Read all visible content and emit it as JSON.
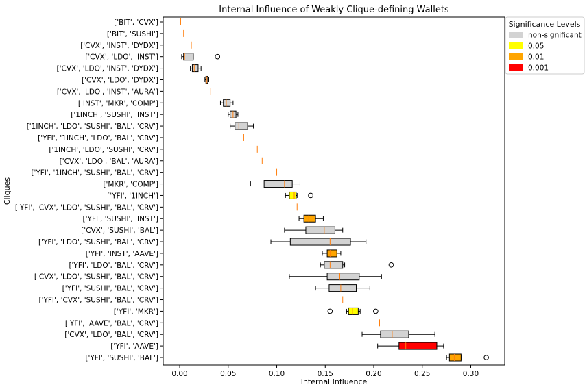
{
  "chart_data": {
    "type": "boxplot-horizontal",
    "title": "Internal Influence of Weakly Clique-defining Wallets",
    "xlabel": "Internal Influence",
    "ylabel": "Cliques",
    "xlim": [
      -0.017,
      0.335
    ],
    "xticks": [
      "0.00",
      "0.05",
      "0.10",
      "0.15",
      "0.20",
      "0.25",
      "0.30"
    ],
    "xtick_values": [
      0,
      0.05,
      0.1,
      0.15,
      0.2,
      0.25,
      0.3
    ],
    "grid": false,
    "legend": {
      "title": "Significance Levels",
      "placement": "outside-top-right",
      "entries": [
        {
          "label": "non-significant",
          "color": "#d3d3d3",
          "key": "ns"
        },
        {
          "label": "0.05",
          "color": "#ffff00",
          "key": "p05"
        },
        {
          "label": "0.01",
          "color": "#ffa500",
          "key": "p01"
        },
        {
          "label": "0.001",
          "color": "#ff0000",
          "key": "p001"
        }
      ]
    },
    "median_color": "#ff7f0e",
    "boxes": [
      {
        "label": "['BIT', 'CVX']",
        "min": 0.001,
        "q1": 0.001,
        "median": 0.001,
        "q3": 0.001,
        "max": 0.001,
        "outliers": [],
        "sig": "ns"
      },
      {
        "label": "['BIT', 'SUSHI']",
        "min": 0.004,
        "q1": 0.004,
        "median": 0.004,
        "q3": 0.004,
        "max": 0.004,
        "outliers": [],
        "sig": "ns"
      },
      {
        "label": "['CVX', 'INST', 'DYDX']",
        "min": 0.012,
        "q1": 0.012,
        "median": 0.012,
        "q3": 0.012,
        "max": 0.012,
        "outliers": [],
        "sig": "ns"
      },
      {
        "label": "['CVX', 'LDO', 'INST']",
        "min": 0.002,
        "q1": 0.004,
        "median": 0.005,
        "q3": 0.014,
        "max": 0.014,
        "outliers": [
          0.039
        ],
        "sig": "ns"
      },
      {
        "label": "['CVX', 'LDO', 'INST', 'DYDX']",
        "min": 0.011,
        "q1": 0.013,
        "median": 0.015,
        "q3": 0.019,
        "max": 0.022,
        "outliers": [],
        "sig": "ns"
      },
      {
        "label": "['CVX', 'LDO', 'DYDX']",
        "min": 0.026,
        "q1": 0.027,
        "median": 0.028,
        "q3": 0.029,
        "max": 0.03,
        "outliers": [],
        "sig": "ns"
      },
      {
        "label": "['CVX', 'LDO', 'INST', 'AURA']",
        "min": 0.032,
        "q1": 0.032,
        "median": 0.032,
        "q3": 0.032,
        "max": 0.032,
        "outliers": [],
        "sig": "ns"
      },
      {
        "label": "['INST', 'MKR', 'COMP']",
        "min": 0.042,
        "q1": 0.045,
        "median": 0.048,
        "q3": 0.052,
        "max": 0.055,
        "outliers": [],
        "sig": "ns"
      },
      {
        "label": "['1INCH', 'SUSHI', 'INST']",
        "min": 0.05,
        "q1": 0.052,
        "median": 0.055,
        "q3": 0.058,
        "max": 0.06,
        "outliers": [],
        "sig": "ns"
      },
      {
        "label": "['1INCH', 'LDO', 'SUSHI', 'BAL', 'CRV']",
        "min": 0.052,
        "q1": 0.057,
        "median": 0.061,
        "q3": 0.07,
        "max": 0.076,
        "outliers": [],
        "sig": "ns"
      },
      {
        "label": "['YFI', '1INCH', 'LDO', 'BAL', 'CRV']",
        "min": 0.066,
        "q1": 0.066,
        "median": 0.066,
        "q3": 0.066,
        "max": 0.066,
        "outliers": [],
        "sig": "ns"
      },
      {
        "label": "['1INCH', 'LDO', 'SUSHI', 'CRV']",
        "min": 0.08,
        "q1": 0.08,
        "median": 0.08,
        "q3": 0.08,
        "max": 0.08,
        "outliers": [],
        "sig": "ns"
      },
      {
        "label": "['CVX', 'LDO', 'BAL', 'AURA']",
        "min": 0.085,
        "q1": 0.085,
        "median": 0.085,
        "q3": 0.085,
        "max": 0.085,
        "outliers": [],
        "sig": "ns"
      },
      {
        "label": "['YFI', '1INCH', 'SUSHI', 'BAL', 'CRV']",
        "min": 0.1,
        "q1": 0.1,
        "median": 0.1,
        "q3": 0.1,
        "max": 0.1,
        "outliers": [],
        "sig": "ns"
      },
      {
        "label": "['MKR', 'COMP']",
        "min": 0.073,
        "q1": 0.087,
        "median": 0.108,
        "q3": 0.116,
        "max": 0.124,
        "outliers": [],
        "sig": "ns"
      },
      {
        "label": "['YFI', '1INCH']",
        "min": 0.109,
        "q1": 0.113,
        "median": 0.118,
        "q3": 0.12,
        "max": 0.121,
        "outliers": [
          0.135
        ],
        "sig": "p05"
      },
      {
        "label": "['YFI', 'CVX', 'LDO', 'SUSHI', 'BAL', 'CRV']",
        "min": 0.121,
        "q1": 0.121,
        "median": 0.121,
        "q3": 0.121,
        "max": 0.121,
        "outliers": [],
        "sig": "ns"
      },
      {
        "label": "['YFI', 'SUSHI', 'INST']",
        "min": 0.123,
        "q1": 0.128,
        "median": 0.133,
        "q3": 0.14,
        "max": 0.148,
        "outliers": [],
        "sig": "p01"
      },
      {
        "label": "['CVX', 'SUSHI', 'BAL']",
        "min": 0.108,
        "q1": 0.13,
        "median": 0.149,
        "q3": 0.16,
        "max": 0.168,
        "outliers": [],
        "sig": "ns"
      },
      {
        "label": "['YFI', 'LDO', 'SUSHI', 'BAL', 'CRV']",
        "min": 0.094,
        "q1": 0.114,
        "median": 0.155,
        "q3": 0.176,
        "max": 0.192,
        "outliers": [],
        "sig": "ns"
      },
      {
        "label": "['YFI', 'INST', 'AAVE']",
        "min": 0.147,
        "q1": 0.152,
        "median": 0.155,
        "q3": 0.162,
        "max": 0.166,
        "outliers": [],
        "sig": "p01"
      },
      {
        "label": "['YFI', 'LDO', 'BAL', 'CRV']",
        "min": 0.145,
        "q1": 0.149,
        "median": 0.155,
        "q3": 0.168,
        "max": 0.17,
        "outliers": [
          0.218
        ],
        "sig": "ns"
      },
      {
        "label": "['CVX', 'LDO', 'SUSHI', 'BAL', 'CRV']",
        "min": 0.113,
        "q1": 0.152,
        "median": 0.165,
        "q3": 0.185,
        "max": 0.208,
        "outliers": [],
        "sig": "ns"
      },
      {
        "label": "['YFI', 'SUSHI', 'BAL', 'CRV']",
        "min": 0.14,
        "q1": 0.154,
        "median": 0.166,
        "q3": 0.182,
        "max": 0.196,
        "outliers": [],
        "sig": "ns"
      },
      {
        "label": "['YFI', 'CVX', 'SUSHI', 'BAL', 'CRV']",
        "min": 0.168,
        "q1": 0.168,
        "median": 0.168,
        "q3": 0.168,
        "max": 0.168,
        "outliers": [],
        "sig": "ns"
      },
      {
        "label": "['YFI', 'MKR']",
        "min": 0.172,
        "q1": 0.174,
        "median": 0.178,
        "q3": 0.184,
        "max": 0.186,
        "outliers": [
          0.155,
          0.202
        ],
        "sig": "p05"
      },
      {
        "label": "['YFI', 'AAVE', 'BAL', 'CRV']",
        "min": 0.206,
        "q1": 0.206,
        "median": 0.206,
        "q3": 0.206,
        "max": 0.206,
        "outliers": [],
        "sig": "ns"
      },
      {
        "label": "['CVX', 'LDO', 'BAL', 'CRV']",
        "min": 0.188,
        "q1": 0.207,
        "median": 0.219,
        "q3": 0.236,
        "max": 0.263,
        "outliers": [],
        "sig": "ns"
      },
      {
        "label": "['YFI', 'AAVE']",
        "min": 0.204,
        "q1": 0.226,
        "median": 0.233,
        "q3": 0.265,
        "max": 0.272,
        "outliers": [],
        "sig": "p001"
      },
      {
        "label": "['YFI', 'SUSHI', 'BAL']",
        "min": 0.275,
        "q1": 0.278,
        "median": 0.283,
        "q3": 0.29,
        "max": 0.29,
        "outliers": [
          0.316
        ],
        "sig": "p01"
      }
    ]
  }
}
